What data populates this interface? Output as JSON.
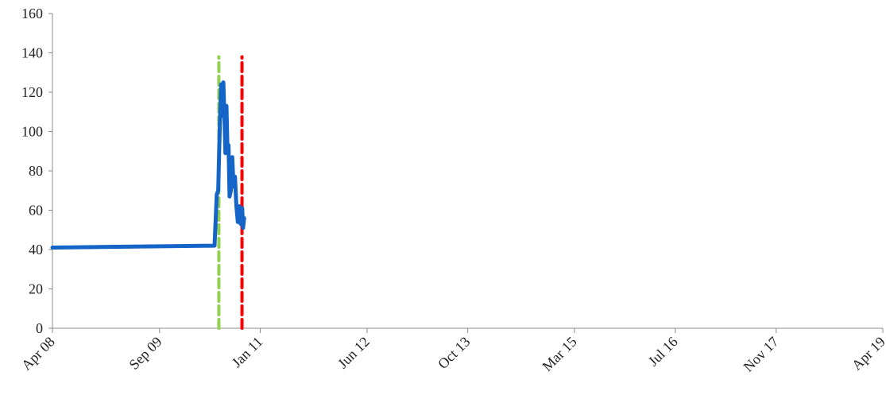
{
  "chart_data": {
    "type": "line",
    "title": "",
    "xlabel": "",
    "ylabel": "",
    "ylim": [
      0,
      160
    ],
    "y_ticks": [
      0,
      20,
      40,
      60,
      80,
      100,
      120,
      140,
      160
    ],
    "xlim": [
      "2008-04-01",
      "2019-04-01"
    ],
    "x_ticks": [
      {
        "date": "2008-04-01",
        "label": "Apr 08"
      },
      {
        "date": "2009-09-01",
        "label": "Sep 09"
      },
      {
        "date": "2011-01-01",
        "label": "Jan 11"
      },
      {
        "date": "2012-06-01",
        "label": "Jun 12"
      },
      {
        "date": "2013-10-01",
        "label": "Oct 13"
      },
      {
        "date": "2015-03-01",
        "label": "Mar 15"
      },
      {
        "date": "2016-07-01",
        "label": "Jul 16"
      },
      {
        "date": "2017-11-01",
        "label": "Nov 17"
      },
      {
        "date": "2019-04-01",
        "label": "Apr 19"
      }
    ],
    "grid": false,
    "legend": "none",
    "series": [
      {
        "color": "#1565c8",
        "points": [
          {
            "x": "2008-04-01",
            "y": 41
          },
          {
            "x": "2010-05-25",
            "y": 42
          },
          {
            "x": "2010-06-05",
            "y": 68
          },
          {
            "x": "2010-06-12",
            "y": 70
          },
          {
            "x": "2010-06-20",
            "y": 104
          },
          {
            "x": "2010-06-26",
            "y": 124
          },
          {
            "x": "2010-07-02",
            "y": 108
          },
          {
            "x": "2010-07-07",
            "y": 125
          },
          {
            "x": "2010-07-12",
            "y": 108
          },
          {
            "x": "2010-07-17",
            "y": 89
          },
          {
            "x": "2010-07-22",
            "y": 113
          },
          {
            "x": "2010-07-27",
            "y": 90
          },
          {
            "x": "2010-08-01",
            "y": 93
          },
          {
            "x": "2010-08-06",
            "y": 67
          },
          {
            "x": "2010-08-12",
            "y": 70
          },
          {
            "x": "2010-08-19",
            "y": 87
          },
          {
            "x": "2010-08-25",
            "y": 72
          },
          {
            "x": "2010-09-01",
            "y": 77
          },
          {
            "x": "2010-09-08",
            "y": 62
          },
          {
            "x": "2010-09-15",
            "y": 54
          },
          {
            "x": "2010-09-22",
            "y": 62
          },
          {
            "x": "2010-09-29",
            "y": 53
          },
          {
            "x": "2010-10-06",
            "y": 61
          },
          {
            "x": "2010-10-10",
            "y": 51
          },
          {
            "x": "2010-10-15",
            "y": 56
          }
        ]
      }
    ],
    "vertical_lines": [
      {
        "x": "2010-06-15",
        "y_range": [
          0,
          138
        ],
        "color": "#92d050",
        "style": "dashed"
      },
      {
        "x": "2010-10-05",
        "y_range": [
          0,
          138
        ],
        "color": "#ff0000",
        "style": "dashed"
      }
    ]
  }
}
